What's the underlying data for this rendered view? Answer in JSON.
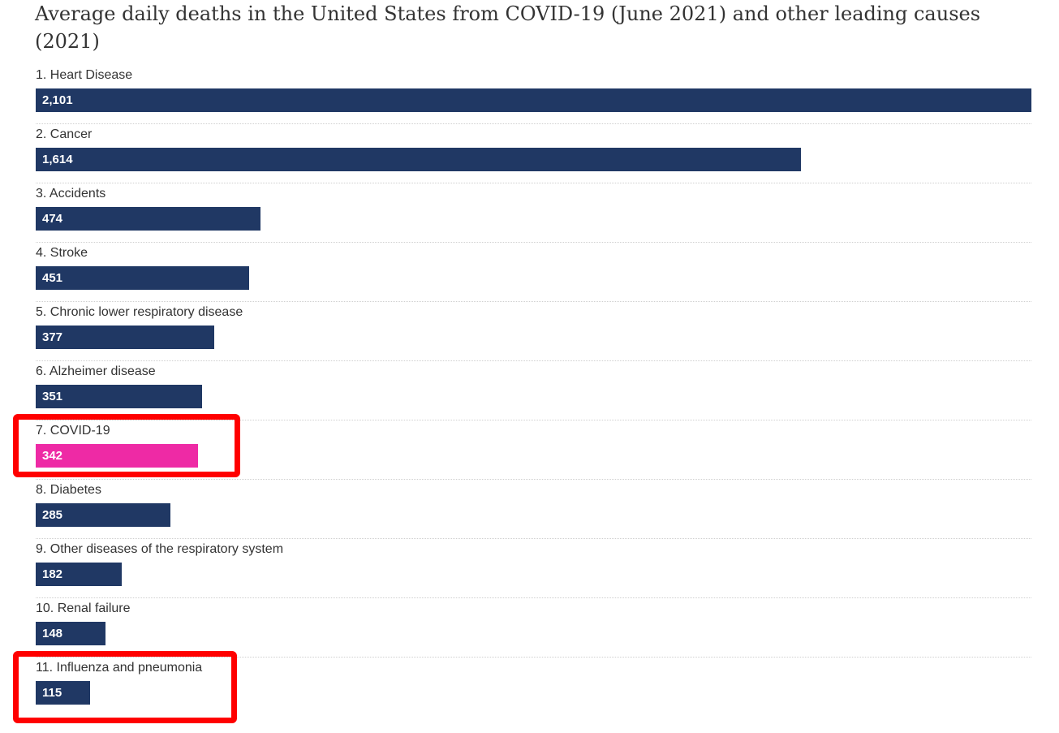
{
  "chart_data": {
    "type": "bar",
    "orientation": "horizontal",
    "title": "Average daily deaths in the United States from COVID-19 (June 2021) and other leading causes (2021)",
    "categories": [
      "1. Heart Disease",
      "2. Cancer",
      "3. Accidents",
      "4. Stroke",
      "5. Chronic lower respiratory disease",
      "6. Alzheimer disease",
      "7. COVID-19",
      "8. Diabetes",
      "9. Other diseases of the respiratory system",
      "10. Renal failure",
      "11. Influenza and pneumonia"
    ],
    "values": [
      2101,
      1614,
      474,
      451,
      377,
      351,
      342,
      285,
      182,
      148,
      115
    ],
    "value_labels": [
      "2,101",
      "1,614",
      "474",
      "451",
      "377",
      "351",
      "342",
      "285",
      "182",
      "148",
      "115"
    ],
    "xlim": [
      0,
      2101
    ],
    "grid": false,
    "legend": "none",
    "colors": {
      "default_bar": "#203864",
      "highlight_bar": "#ee2aa5",
      "highlight_index": 6,
      "annotation_box": "#ff0000"
    },
    "annotations": [
      {
        "type": "box",
        "category_index": 6
      },
      {
        "type": "box",
        "category_index": 10
      }
    ]
  }
}
